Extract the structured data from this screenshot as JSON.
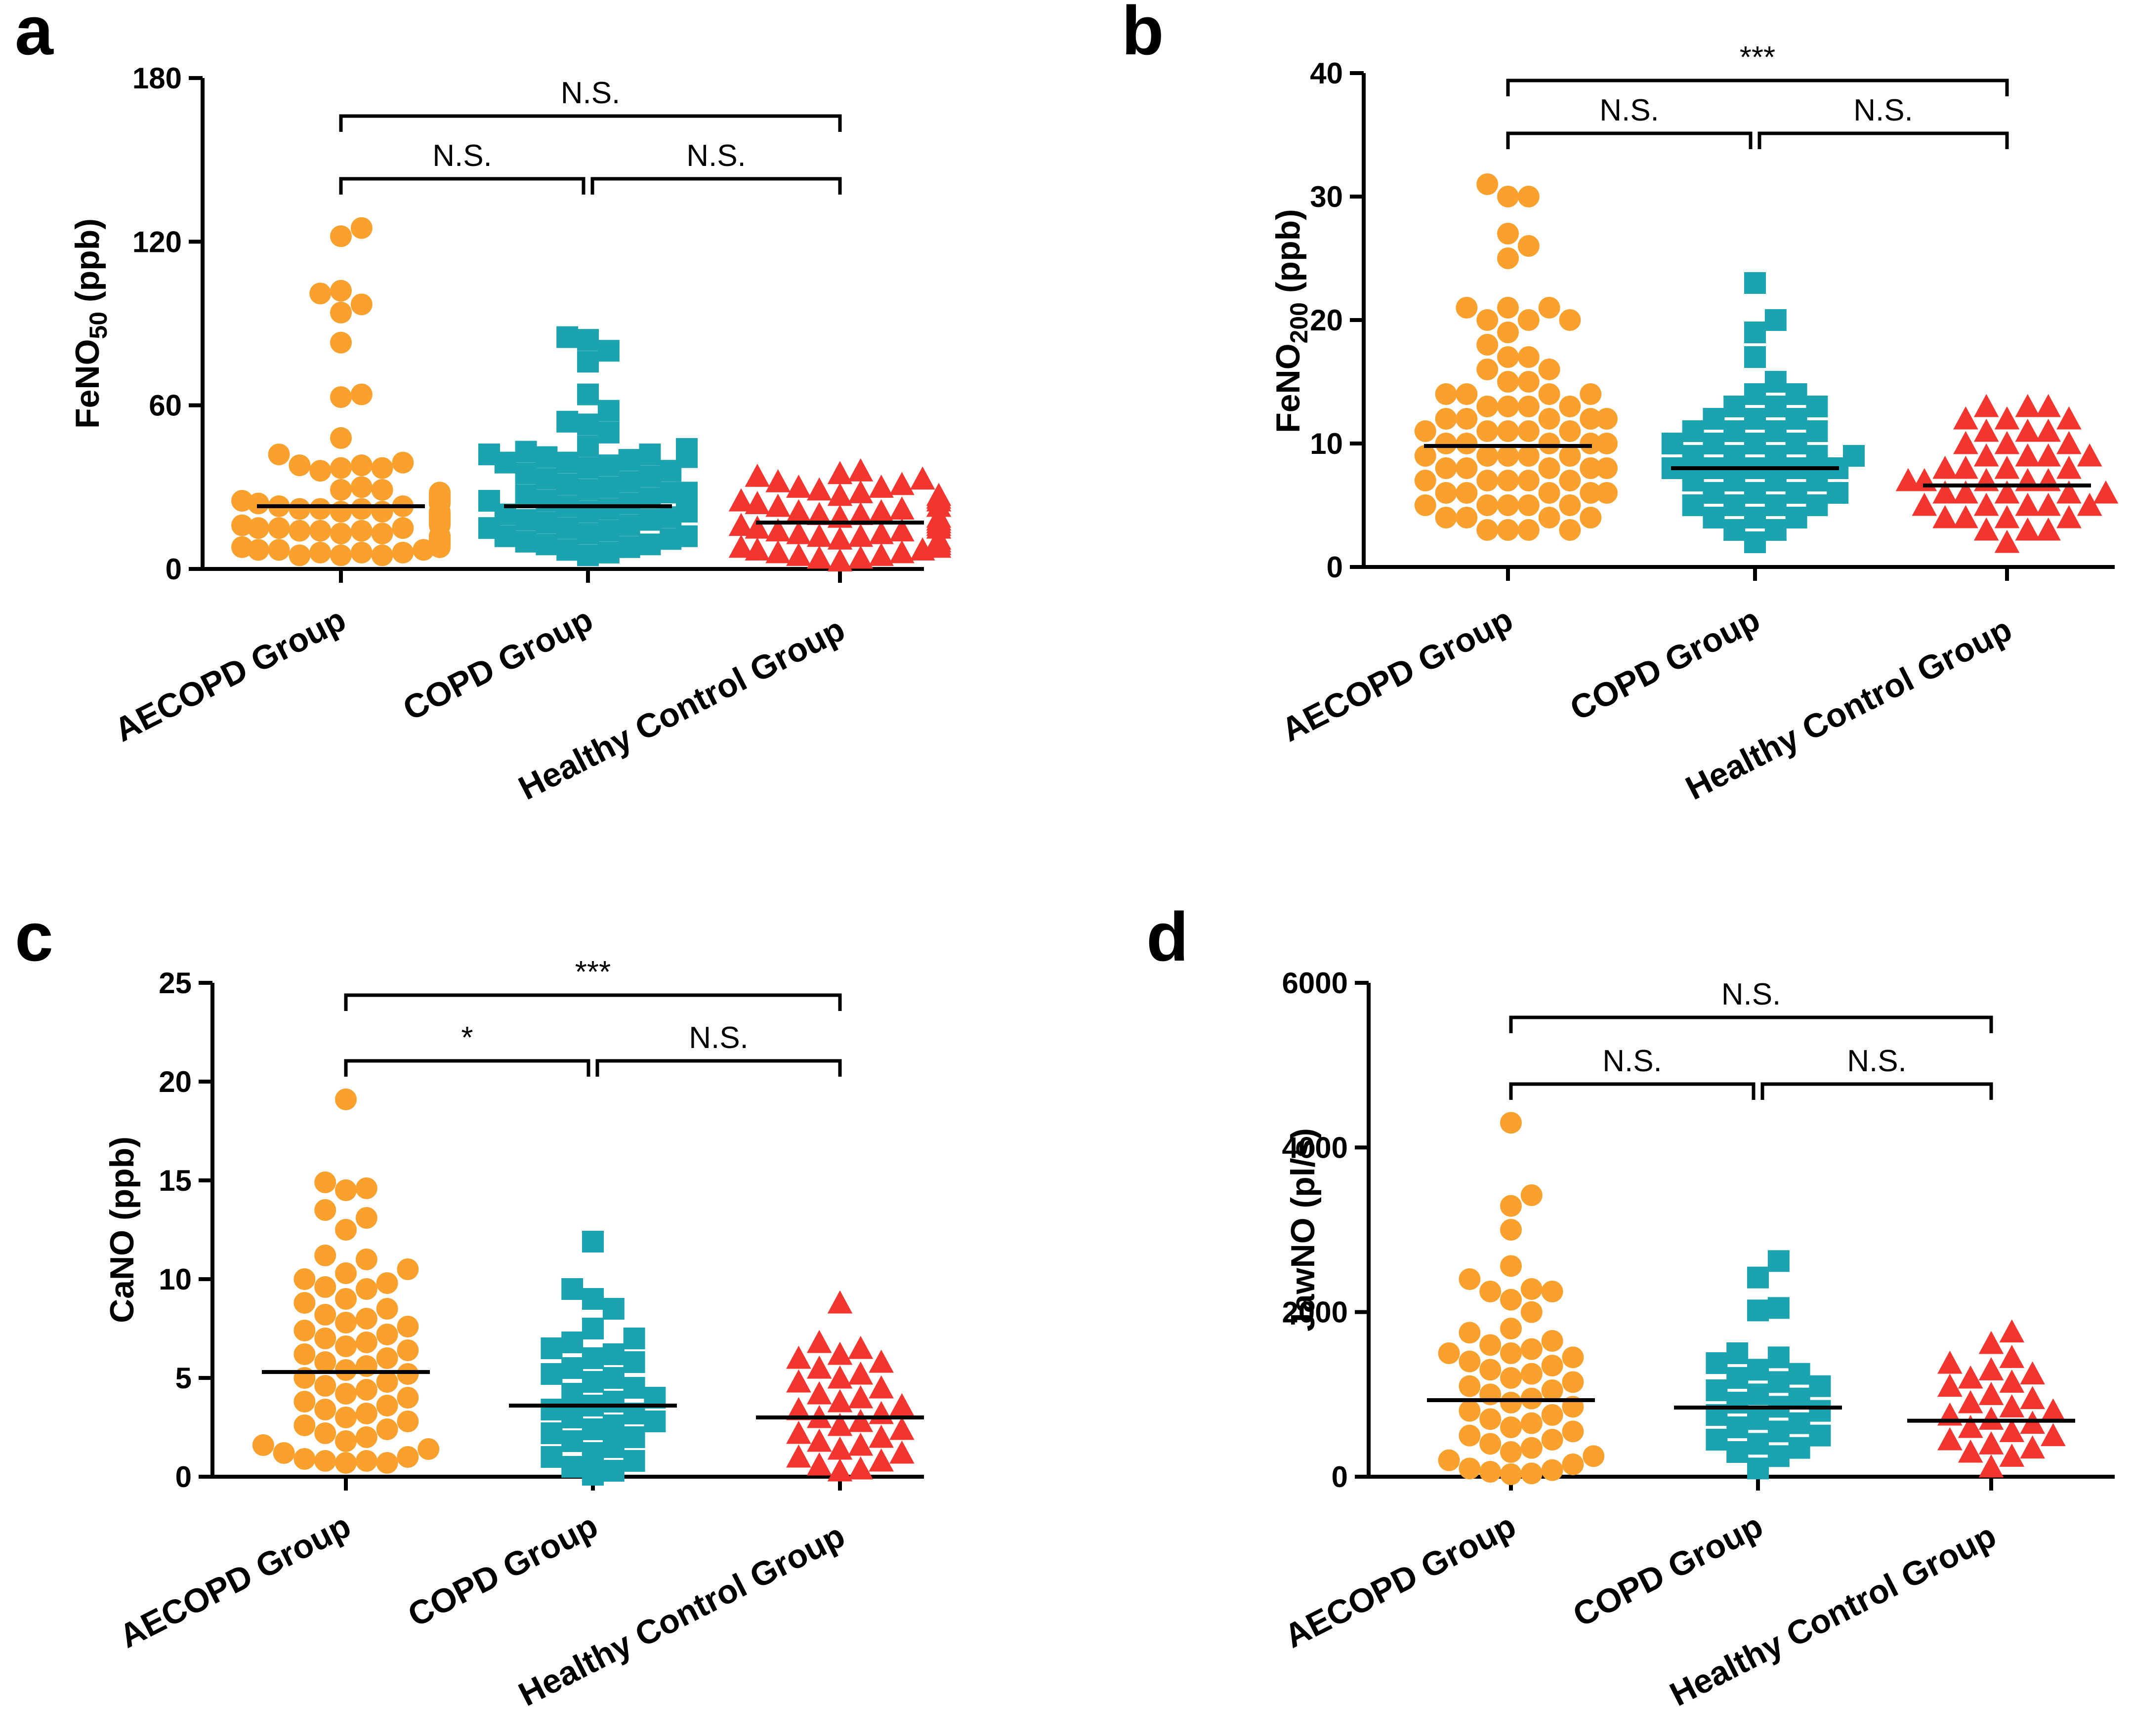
{
  "figure": {
    "groups": [
      "AECOPD Group",
      "COPD Group",
      "Healthy Control Group"
    ],
    "colors": {
      "AECOPD Group": "#F9A02D",
      "COPD Group": "#1BA3B0",
      "Healthy Control Group": "#F2352E"
    },
    "markers": {
      "AECOPD Group": "circle",
      "COPD Group": "square",
      "Healthy Control Group": "triangle"
    }
  },
  "chart_data": [
    {
      "id": "a",
      "type": "scatter",
      "panel_label": "a",
      "ylabel_main": "FeNO",
      "ylabel_sub": "50",
      "ylabel_unit": " (ppb)",
      "ylim": [
        0,
        180
      ],
      "yticks": [
        0,
        60,
        120,
        180
      ],
      "categories": [
        "AECOPD Group",
        "COPD Group",
        "Healthy Control Group"
      ],
      "means": [
        23,
        23,
        17
      ],
      "series": [
        {
          "name": "AECOPD Group",
          "marker": "circle",
          "values": [
            125,
            122,
            102,
            101,
            97,
            94,
            83,
            64,
            63,
            48,
            42,
            39,
            38,
            38,
            37,
            37,
            36,
            30,
            29,
            29,
            28,
            28,
            27,
            27,
            27,
            26,
            26,
            25,
            25,
            25,
            24,
            24,
            23,
            23,
            22,
            22,
            22,
            21,
            21,
            21,
            20,
            20,
            20,
            19,
            19,
            18,
            18,
            18,
            17,
            17,
            17,
            16,
            16,
            15,
            15,
            15,
            14,
            14,
            14,
            13,
            13,
            12,
            12,
            12,
            11,
            11,
            11,
            10,
            10,
            10,
            9,
            9,
            9,
            8,
            8,
            8,
            7,
            7,
            7,
            6,
            6,
            6,
            5,
            5,
            5
          ]
        },
        {
          "name": "COPD Group",
          "marker": "square",
          "values": [
            85,
            84,
            80,
            76,
            64,
            58,
            54,
            53,
            50,
            45,
            44,
            43,
            42,
            42,
            41,
            41,
            40,
            39,
            39,
            38,
            37,
            36,
            35,
            34,
            33,
            32,
            31,
            30,
            29,
            28,
            28,
            27,
            26,
            25,
            25,
            24,
            23,
            22,
            21,
            21,
            20,
            19,
            18,
            18,
            17,
            16,
            15,
            15,
            14,
            13,
            12,
            12,
            11,
            10,
            9,
            9,
            8,
            7,
            6,
            5
          ]
        },
        {
          "name": "Healthy Control Group",
          "marker": "triangle",
          "values": [
            36,
            35,
            34,
            33,
            32,
            31,
            30,
            30,
            29,
            28,
            27,
            27,
            26,
            25,
            25,
            24,
            23,
            23,
            22,
            21,
            21,
            20,
            20,
            19,
            19,
            18,
            18,
            17,
            17,
            16,
            16,
            15,
            15,
            14,
            14,
            13,
            13,
            12,
            12,
            11,
            11,
            10,
            10,
            9,
            9,
            8,
            8,
            7,
            7,
            6,
            6,
            5,
            5,
            4,
            4,
            3
          ]
        }
      ],
      "comparisons": [
        {
          "pair": [
            0,
            1
          ],
          "label": "N.S."
        },
        {
          "pair": [
            1,
            2
          ],
          "label": "N.S."
        },
        {
          "pair": [
            0,
            2
          ],
          "label": "N.S."
        }
      ]
    },
    {
      "id": "b",
      "type": "scatter",
      "panel_label": "b",
      "ylabel_main": "FeNO",
      "ylabel_sub": "200",
      "ylabel_unit": " (ppb)",
      "ylim": [
        0,
        40
      ],
      "yticks": [
        0,
        10,
        20,
        30,
        40
      ],
      "categories": [
        "AECOPD Group",
        "COPD Group",
        "Healthy Control Group"
      ],
      "means": [
        9.8,
        8.0,
        6.6
      ],
      "series": [
        {
          "name": "AECOPD Group",
          "marker": "circle",
          "values": [
            31,
            30,
            30,
            27,
            26,
            25,
            21,
            21,
            21,
            20,
            20,
            20,
            19,
            18,
            17,
            17,
            16,
            16,
            15,
            15,
            14,
            14,
            14,
            14,
            13,
            13,
            13,
            13,
            12,
            12,
            12,
            12,
            12,
            11,
            11,
            11,
            11,
            11,
            10,
            10,
            10,
            10,
            10,
            9,
            9,
            9,
            9,
            9,
            8,
            8,
            8,
            8,
            8,
            7,
            7,
            7,
            7,
            7,
            6,
            6,
            6,
            6,
            6,
            5,
            5,
            5,
            5,
            5,
            4,
            4,
            4,
            4,
            3,
            3,
            3,
            3
          ]
        },
        {
          "name": "COPD Group",
          "marker": "square",
          "values": [
            23,
            20,
            19,
            17,
            15,
            14,
            14,
            13,
            13,
            13,
            12,
            12,
            12,
            11,
            11,
            11,
            11,
            10,
            10,
            10,
            10,
            9,
            9,
            9,
            9,
            9,
            8,
            8,
            8,
            8,
            8,
            7,
            7,
            7,
            7,
            6,
            6,
            6,
            6,
            5,
            5,
            5,
            5,
            4,
            4,
            4,
            3,
            3,
            2
          ]
        },
        {
          "name": "Healthy Control Group",
          "marker": "triangle",
          "values": [
            13,
            13,
            13,
            12,
            12,
            12,
            11,
            11,
            11,
            10,
            10,
            10,
            9,
            9,
            9,
            9,
            8,
            8,
            8,
            8,
            7,
            7,
            7,
            7,
            7,
            6,
            6,
            6,
            6,
            6,
            5,
            5,
            5,
            5,
            5,
            4,
            4,
            4,
            4,
            3,
            3,
            3,
            2
          ]
        }
      ],
      "comparisons": [
        {
          "pair": [
            0,
            1
          ],
          "label": "N.S."
        },
        {
          "pair": [
            1,
            2
          ],
          "label": "N.S."
        },
        {
          "pair": [
            0,
            2
          ],
          "label": "***"
        }
      ]
    },
    {
      "id": "c",
      "type": "scatter",
      "panel_label": "c",
      "ylabel_main": "CaNO (ppb)",
      "ylabel_sub": "",
      "ylabel_unit": "",
      "ylim": [
        0,
        25
      ],
      "yticks": [
        0,
        5,
        10,
        15,
        20,
        25
      ],
      "categories": [
        "AECOPD Group",
        "COPD Group",
        "Healthy Control Group"
      ],
      "means": [
        5.3,
        3.6,
        3.0
      ],
      "series": [
        {
          "name": "AECOPD Group",
          "marker": "circle",
          "values": [
            19.1,
            14.9,
            14.6,
            14.5,
            13.5,
            13.1,
            12.5,
            11.2,
            11.0,
            10.5,
            10.3,
            10.0,
            9.8,
            9.6,
            9.5,
            9.0,
            8.8,
            8.5,
            8.2,
            8.0,
            7.8,
            7.6,
            7.4,
            7.2,
            7.0,
            6.8,
            6.6,
            6.4,
            6.2,
            6.0,
            5.8,
            5.6,
            5.4,
            5.2,
            5.0,
            4.8,
            4.6,
            4.4,
            4.2,
            4.0,
            3.8,
            3.6,
            3.4,
            3.2,
            3.0,
            2.8,
            2.6,
            2.4,
            2.2,
            2.0,
            1.8,
            1.6,
            1.4,
            1.2,
            1.0,
            0.9,
            0.8,
            0.8,
            0.7,
            0.7
          ]
        },
        {
          "name": "COPD Group",
          "marker": "square",
          "values": [
            11.9,
            9.5,
            9.0,
            8.5,
            7.5,
            7.0,
            6.8,
            6.5,
            6.2,
            6.0,
            5.8,
            5.5,
            5.2,
            5.0,
            4.8,
            4.5,
            4.2,
            4.0,
            3.8,
            3.6,
            3.4,
            3.2,
            3.0,
            2.8,
            2.6,
            2.4,
            2.2,
            2.0,
            1.8,
            1.5,
            1.2,
            1.0,
            0.8,
            0.5,
            0.3,
            0.1
          ]
        },
        {
          "name": "Healthy Control Group",
          "marker": "triangle",
          "values": [
            8.8,
            6.8,
            6.5,
            6.2,
            6.0,
            5.8,
            5.5,
            5.2,
            5.0,
            4.8,
            4.5,
            4.2,
            4.0,
            3.8,
            3.6,
            3.4,
            3.2,
            3.0,
            2.8,
            2.6,
            2.4,
            2.2,
            2.0,
            1.8,
            1.6,
            1.4,
            1.2,
            1.0,
            0.8,
            0.6,
            0.4,
            0.3
          ]
        }
      ],
      "comparisons": [
        {
          "pair": [
            0,
            1
          ],
          "label": "*"
        },
        {
          "pair": [
            1,
            2
          ],
          "label": "N.S."
        },
        {
          "pair": [
            0,
            2
          ],
          "label": "***"
        }
      ]
    },
    {
      "id": "d",
      "type": "scatter",
      "panel_label": "d",
      "ylabel_main": "JawNO (pl/s)",
      "ylabel_sub": "",
      "ylabel_unit": "",
      "ylim": [
        0,
        6000
      ],
      "yticks": [
        0,
        2000,
        4000,
        6000
      ],
      "categories": [
        "AECOPD Group",
        "COPD Group",
        "Healthy Control Group"
      ],
      "means": [
        930,
        840,
        680
      ],
      "series": [
        {
          "name": "AECOPD Group",
          "marker": "circle",
          "values": [
            4300,
            3420,
            3290,
            3000,
            2560,
            2400,
            2280,
            2250,
            2250,
            2150,
            2000,
            1800,
            1750,
            1650,
            1600,
            1550,
            1500,
            1500,
            1450,
            1400,
            1350,
            1300,
            1250,
            1200,
            1150,
            1100,
            1050,
            1000,
            950,
            900,
            850,
            800,
            750,
            700,
            650,
            600,
            550,
            500,
            450,
            400,
            350,
            300,
            250,
            200,
            150,
            100,
            80,
            60,
            40,
            30
          ]
        },
        {
          "name": "COPD Group",
          "marker": "square",
          "values": [
            2620,
            2420,
            2050,
            2020,
            1500,
            1450,
            1380,
            1300,
            1250,
            1200,
            1150,
            1100,
            1050,
            1000,
            950,
            900,
            850,
            800,
            750,
            700,
            650,
            600,
            550,
            500,
            450,
            400,
            350,
            300,
            250,
            100
          ]
        },
        {
          "name": "Healthy Control Group",
          "marker": "triangle",
          "values": [
            1760,
            1620,
            1450,
            1380,
            1300,
            1250,
            1200,
            1150,
            1100,
            1000,
            950,
            900,
            850,
            800,
            750,
            700,
            650,
            600,
            550,
            500,
            450,
            400,
            350,
            300,
            250,
            120
          ]
        }
      ],
      "comparisons": [
        {
          "pair": [
            0,
            1
          ],
          "label": "N.S."
        },
        {
          "pair": [
            1,
            2
          ],
          "label": "N.S."
        },
        {
          "pair": [
            0,
            2
          ],
          "label": "N.S."
        }
      ]
    }
  ]
}
